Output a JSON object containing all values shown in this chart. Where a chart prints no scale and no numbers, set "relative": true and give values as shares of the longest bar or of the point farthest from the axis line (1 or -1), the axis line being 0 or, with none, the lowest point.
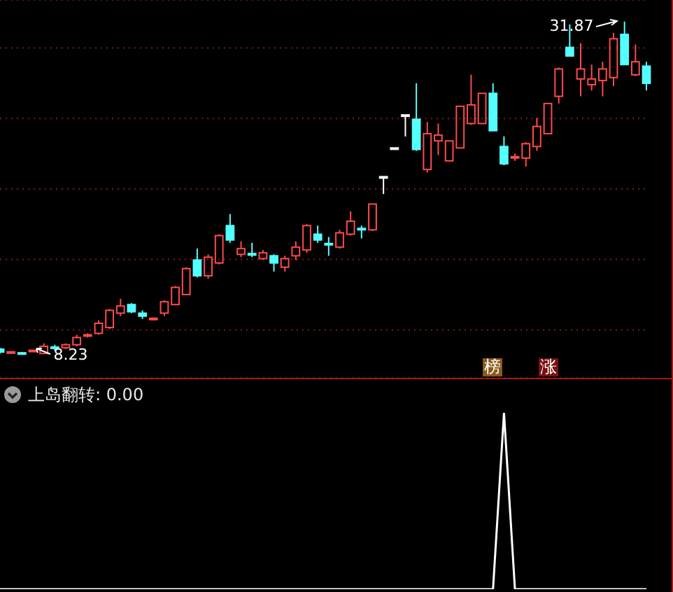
{
  "chart_data": [
    {
      "type": "candlestick",
      "categories": [
        null,
        null,
        null,
        null,
        null,
        null,
        null,
        null,
        null,
        null,
        null,
        null,
        null,
        null,
        null,
        null,
        null,
        null,
        null,
        null,
        null,
        null,
        null,
        null,
        null,
        null,
        null,
        null,
        null,
        null,
        null,
        null,
        null,
        null,
        null,
        null,
        null,
        null,
        null,
        null,
        null,
        null,
        null,
        null,
        null,
        null,
        null,
        null,
        null,
        null,
        null,
        null,
        null,
        null,
        null,
        null,
        null,
        null,
        null,
        null
      ],
      "ohlc": [
        [
          8.64,
          8.74,
          8.33,
          8.43
        ],
        [
          8.4,
          8.5,
          8.38,
          8.45
        ],
        [
          8.38,
          8.43,
          8.23,
          8.3
        ],
        [
          8.5,
          8.6,
          8.45,
          8.56
        ],
        [
          8.33,
          9.05,
          8.28,
          8.84
        ],
        [
          8.79,
          8.95,
          8.54,
          8.74
        ],
        [
          8.74,
          9.05,
          8.64,
          8.95
        ],
        [
          8.95,
          9.66,
          8.84,
          9.46
        ],
        [
          9.56,
          9.76,
          9.46,
          9.66
        ],
        [
          9.76,
          10.68,
          9.66,
          10.47
        ],
        [
          10.17,
          11.49,
          10.07,
          11.39
        ],
        [
          11.19,
          12.21,
          10.98,
          11.7
        ],
        [
          11.8,
          11.9,
          11.19,
          11.29
        ],
        [
          11.19,
          11.39,
          10.78,
          10.98
        ],
        [
          10.78,
          10.88,
          10.68,
          10.83
        ],
        [
          11.19,
          12.1,
          10.98,
          12.0
        ],
        [
          11.8,
          13.12,
          11.8,
          13.02
        ],
        [
          12.51,
          14.45,
          12.51,
          14.35
        ],
        [
          14.96,
          15.77,
          13.73,
          13.84
        ],
        [
          13.84,
          15.36,
          13.63,
          15.16
        ],
        [
          14.75,
          16.79,
          14.65,
          16.69
        ],
        [
          17.4,
          18.22,
          16.18,
          16.38
        ],
        [
          15.36,
          16.28,
          15.16,
          15.77
        ],
        [
          15.42,
          16.18,
          15.16,
          15.31
        ],
        [
          15.06,
          15.67,
          14.96,
          15.47
        ],
        [
          15.26,
          15.36,
          14.14,
          14.75
        ],
        [
          14.45,
          15.26,
          14.14,
          15.06
        ],
        [
          15.26,
          16.28,
          14.96,
          15.87
        ],
        [
          15.67,
          17.5,
          15.47,
          17.4
        ],
        [
          16.79,
          17.4,
          16.18,
          16.38
        ],
        [
          16.13,
          16.59,
          15.26,
          16.03
        ],
        [
          15.87,
          17.1,
          15.77,
          16.89
        ],
        [
          16.79,
          18.42,
          16.69,
          17.71
        ],
        [
          17.2,
          17.4,
          16.49,
          17.1
        ],
        [
          17.1,
          18.93,
          17.01,
          18.93
        ],
        [
          20.87,
          20.87,
          19.64,
          20.87
        ],
        [
          22.91,
          22.91,
          22.91,
          22.91
        ],
        [
          25.25,
          25.25,
          23.72,
          25.25
        ],
        [
          24.94,
          27.49,
          22.7,
          22.8
        ],
        [
          21.38,
          24.74,
          21.17,
          23.92
        ],
        [
          23.41,
          24.64,
          22.4,
          23.82
        ],
        [
          21.99,
          23.41,
          21.99,
          23.41
        ],
        [
          22.91,
          25.86,
          22.91,
          25.86
        ],
        [
          24.64,
          28.1,
          24.54,
          25.96
        ],
        [
          24.64,
          26.78,
          24.64,
          26.78
        ],
        [
          26.78,
          27.49,
          24.13,
          24.13
        ],
        [
          23.01,
          23.72,
          21.68,
          21.78
        ],
        [
          22.19,
          22.5,
          21.99,
          22.29
        ],
        [
          22.19,
          23.31,
          21.58,
          23.21
        ],
        [
          23.01,
          25.04,
          22.7,
          24.43
        ],
        [
          23.92,
          26.06,
          23.92,
          26.06
        ],
        [
          26.57,
          28.61,
          26.06,
          28.51
        ],
        [
          30.04,
          31.67,
          29.43,
          29.43
        ],
        [
          27.8,
          30.34,
          26.57,
          28.51
        ],
        [
          27.39,
          28.82,
          26.98,
          27.8
        ],
        [
          27.69,
          29.02,
          26.57,
          28.51
        ],
        [
          27.9,
          31.06,
          27.29,
          30.65
        ],
        [
          30.96,
          31.87,
          28.82,
          28.82
        ],
        [
          28.1,
          30.24,
          28.0,
          29.02
        ],
        [
          28.71,
          29.02,
          26.98,
          27.49
        ]
      ],
      "colors": [
        "#54ffff",
        "#ff4a4a",
        "#54ffff",
        "#ff4a4a",
        "#ff4a4a",
        "#54ffff",
        "#ff4a4a",
        "#ff4a4a",
        "#ff4a4a",
        "#ff4a4a",
        "#ff4a4a",
        "#ff4a4a",
        "#54ffff",
        "#54ffff",
        "#ff4a4a",
        "#ff4a4a",
        "#ff4a4a",
        "#ff4a4a",
        "#54ffff",
        "#ff4a4a",
        "#ff4a4a",
        "#54ffff",
        "#ff4a4a",
        "#54ffff",
        "#ff4a4a",
        "#54ffff",
        "#ff4a4a",
        "#ff4a4a",
        "#ff4a4a",
        "#54ffff",
        "#54ffff",
        "#ff4a4a",
        "#ff4a4a",
        "#54ffff",
        "#ff4a4a",
        "#ffffff",
        "#ffffff",
        "#ffffff",
        "#54ffff",
        "#ff4a4a",
        "#ff4a4a",
        "#ff4a4a",
        "#ff4a4a",
        "#ff4a4a",
        "#ff4a4a",
        "#54ffff",
        "#54ffff",
        "#ff4a4a",
        "#ff4a4a",
        "#ff4a4a",
        "#ff4a4a",
        "#ff4a4a",
        "#54ffff",
        "#ff4a4a",
        "#ff4a4a",
        "#ff4a4a",
        "#ff4a4a",
        "#54ffff",
        "#ff4a4a",
        "#54ffff"
      ],
      "ylim": [
        6.6,
        33.4
      ],
      "yticks": [
        {
          "value": 10,
          "label": null
        },
        {
          "value": 15,
          "label": null
        },
        {
          "value": 20,
          "label": null
        },
        {
          "value": 25,
          "label": null
        },
        {
          "value": 30,
          "label": null
        }
      ],
      "grid": "y",
      "tick_labels": false,
      "annotations": [
        {
          "text": "31.87",
          "y": 31.87
        },
        "8.23",
        "榜",
        "涨"
      ]
    },
    {
      "type": "line",
      "title": "上岛翻转: 0.00",
      "relative": true,
      "categories": [
        null,
        null,
        null,
        null,
        null,
        null,
        null,
        null,
        null,
        null,
        null,
        null,
        null,
        null,
        null,
        null,
        null,
        null,
        null,
        null,
        null,
        null,
        null,
        null,
        null,
        null,
        null,
        null,
        null,
        null,
        null,
        null,
        null,
        null,
        null,
        null,
        null,
        null,
        null,
        null,
        null,
        null,
        null,
        null,
        null,
        null,
        null,
        null,
        null,
        null,
        null,
        null,
        null,
        null,
        null,
        null,
        null,
        null,
        null,
        null
      ],
      "series": [
        {
          "color": "#ffffff",
          "values": [
            0,
            0,
            0,
            0,
            0,
            0,
            0,
            0,
            0,
            0,
            0,
            0,
            0,
            0,
            0,
            0,
            0,
            0,
            0,
            0,
            0,
            0,
            0,
            0,
            0,
            0,
            0,
            0,
            0,
            0,
            0,
            0,
            0,
            0,
            0,
            0,
            0,
            0,
            0,
            0,
            0,
            0,
            0,
            0,
            0,
            0,
            1,
            0,
            0,
            0,
            0,
            0,
            0,
            0,
            0,
            0,
            0,
            0,
            0,
            0
          ]
        }
      ],
      "tick_labels": false,
      "marker": "none"
    }
  ]
}
